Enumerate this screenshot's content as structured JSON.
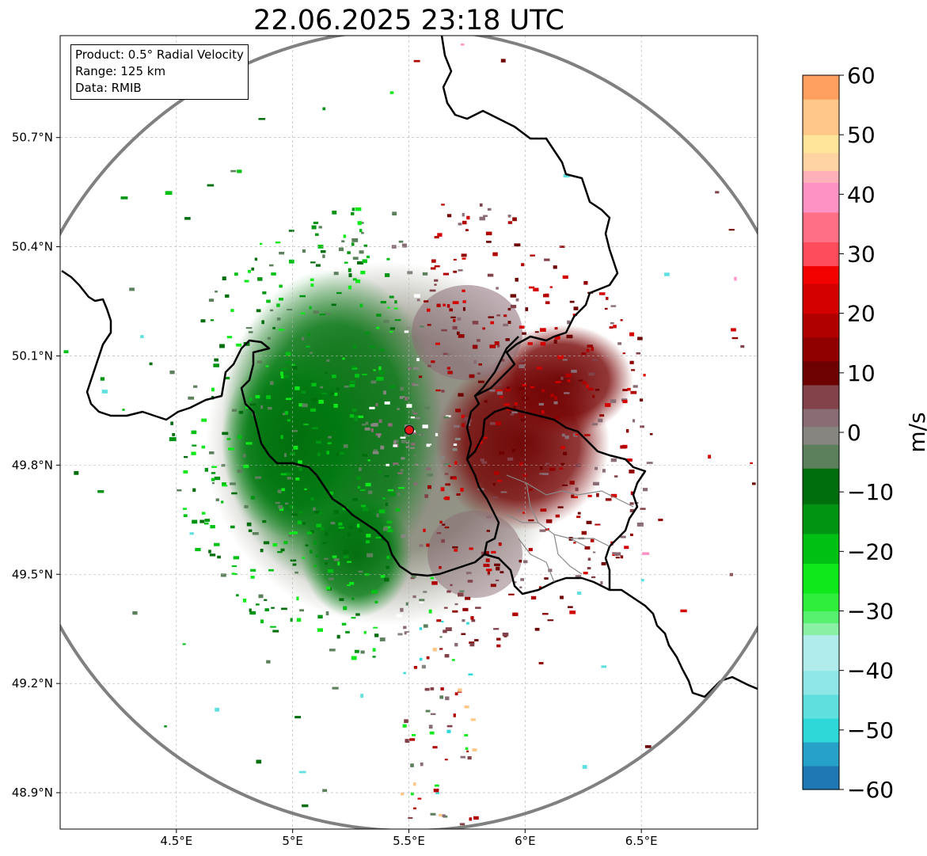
{
  "title": "22.06.2025 23:18 UTC",
  "info": {
    "product": "Product: 0.5° Radial Velocity",
    "range": "Range: 125 km",
    "data": "Data: RMIB"
  },
  "map": {
    "lon_range": [
      4.0,
      7.0
    ],
    "lat_range": [
      48.8,
      50.98
    ],
    "radar_site": {
      "lon": 5.505,
      "lat": 49.914
    },
    "range_km": 125,
    "lon_ticks": [
      {
        "value": 4.5,
        "label": "4.5°E"
      },
      {
        "value": 5.0,
        "label": "5°E"
      },
      {
        "value": 5.5,
        "label": "5.5°E"
      },
      {
        "value": 6.0,
        "label": "6°E"
      },
      {
        "value": 6.5,
        "label": "6.5°E"
      }
    ],
    "lat_ticks": [
      {
        "value": 48.9,
        "label": "48.9°N"
      },
      {
        "value": 49.2,
        "label": "49.2°N"
      },
      {
        "value": 49.5,
        "label": "49.5°N"
      },
      {
        "value": 49.8,
        "label": "49.8°N"
      },
      {
        "value": 50.1,
        "label": "50.1°N"
      },
      {
        "value": 50.4,
        "label": "50.4°N"
      },
      {
        "value": 50.7,
        "label": "50.7°N"
      }
    ],
    "grid": true,
    "colors": {
      "border": "#000000",
      "range_ring": "#808080",
      "subdivision": "#888888",
      "site_marker": "#e31a1c"
    }
  },
  "colorbar": {
    "label": "m/s",
    "min": -60,
    "max": 60,
    "ticks": [
      {
        "value": 60,
        "label": "60"
      },
      {
        "value": 50,
        "label": "50"
      },
      {
        "value": 40,
        "label": "40"
      },
      {
        "value": 30,
        "label": "30"
      },
      {
        "value": 20,
        "label": "20"
      },
      {
        "value": 10,
        "label": "10"
      },
      {
        "value": 0,
        "label": "0"
      },
      {
        "value": -10,
        "label": "−10"
      },
      {
        "value": -20,
        "label": "−20"
      },
      {
        "value": -30,
        "label": "−30"
      },
      {
        "value": -40,
        "label": "−40"
      },
      {
        "value": -50,
        "label": "−50"
      },
      {
        "value": -60,
        "label": "−60"
      }
    ],
    "color_stops": [
      {
        "from": -60,
        "color": "#1f78b4"
      },
      {
        "from": -56,
        "color": "#26a2c8"
      },
      {
        "from": -52,
        "color": "#2ed8d8"
      },
      {
        "from": -48,
        "color": "#5fe0df"
      },
      {
        "from": -44,
        "color": "#8ee6e6"
      },
      {
        "from": -40,
        "color": "#b0ecec"
      },
      {
        "from": -34,
        "color": "#8af0a4"
      },
      {
        "from": -32,
        "color": "#57f06f"
      },
      {
        "from": -30,
        "color": "#2fee3c"
      },
      {
        "from": -27,
        "color": "#0fe81a"
      },
      {
        "from": -22,
        "color": "#00c014"
      },
      {
        "from": -17,
        "color": "#009412"
      },
      {
        "from": -12,
        "color": "#006e0c"
      },
      {
        "from": -6,
        "color": "#5c7f5c"
      },
      {
        "from": -2,
        "color": "#86857f"
      },
      {
        "from": 1,
        "color": "#8a6c74"
      },
      {
        "from": 4,
        "color": "#82424a"
      },
      {
        "from": 8,
        "color": "#6d0000"
      },
      {
        "from": 12,
        "color": "#900000"
      },
      {
        "from": 16,
        "color": "#b00000"
      },
      {
        "from": 20,
        "color": "#d40000"
      },
      {
        "from": 25,
        "color": "#f20000"
      },
      {
        "from": 28,
        "color": "#ff4c5c"
      },
      {
        "from": 32,
        "color": "#ff6f85"
      },
      {
        "from": 37,
        "color": "#ff92c4"
      },
      {
        "from": 42,
        "color": "#ffb0b8"
      },
      {
        "from": 44,
        "color": "#ffd4a2"
      },
      {
        "from": 47,
        "color": "#ffe59a"
      },
      {
        "from": 50,
        "color": "#ffc788"
      },
      {
        "from": 56,
        "color": "#ffa060"
      }
    ]
  }
}
